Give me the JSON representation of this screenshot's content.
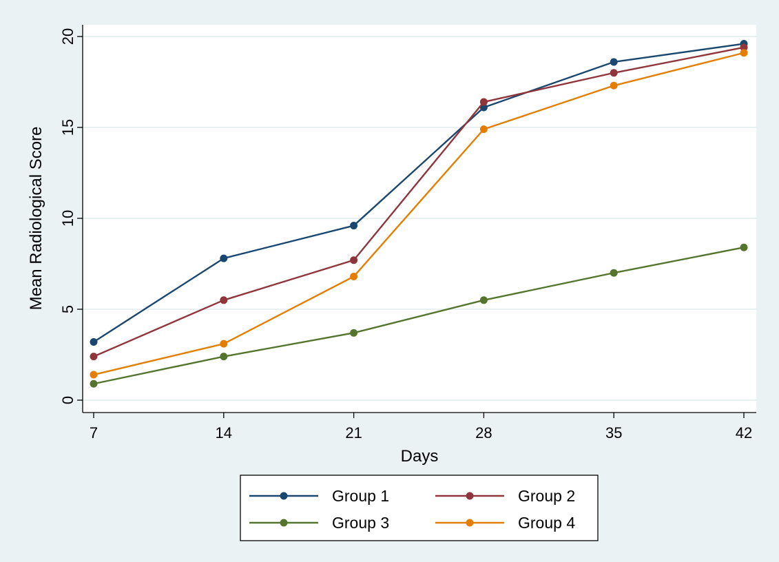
{
  "chart_data": {
    "type": "line",
    "xlabel": "Days",
    "ylabel": "Mean Radiological Score",
    "x": [
      7,
      14,
      21,
      28,
      35,
      42
    ],
    "xticks": [
      "7",
      "14",
      "21",
      "28",
      "35",
      "42"
    ],
    "yticks": [
      "0",
      "5",
      "10",
      "15",
      "20"
    ],
    "xlim": [
      7,
      42
    ],
    "ylim": [
      0,
      20
    ],
    "grid": true,
    "legend_position": "bottom",
    "series": [
      {
        "name": "Group 1",
        "color": "#1a476f",
        "values": [
          3.2,
          7.8,
          9.6,
          16.1,
          18.6,
          19.6
        ]
      },
      {
        "name": "Group 2",
        "color": "#90353b",
        "values": [
          2.4,
          5.5,
          7.7,
          16.4,
          18.0,
          19.4
        ]
      },
      {
        "name": "Group 3",
        "color": "#55752f",
        "values": [
          0.9,
          2.4,
          3.7,
          5.5,
          7.0,
          8.4
        ]
      },
      {
        "name": "Group 4",
        "color": "#e37e00",
        "values": [
          1.4,
          3.1,
          6.8,
          14.9,
          17.3,
          19.1
        ]
      }
    ]
  }
}
